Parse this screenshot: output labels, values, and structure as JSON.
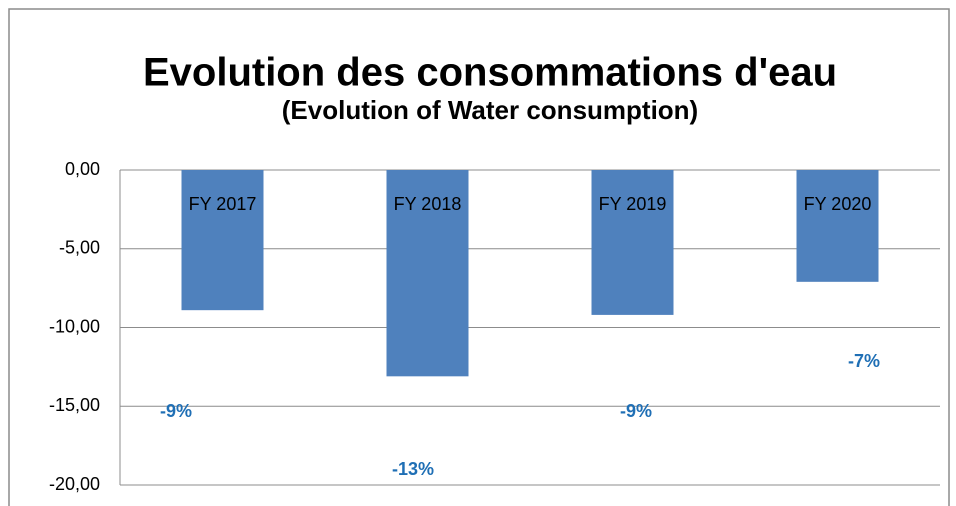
{
  "chart_data": {
    "type": "bar",
    "title": "Evolution des consommations d'eau",
    "subtitle": "(Evolution of Water consumption)",
    "categories": [
      "FY 2017",
      "FY 2018",
      "FY 2019",
      "FY 2020"
    ],
    "values": [
      -8.9,
      -13.1,
      -9.2,
      -7.1
    ],
    "value_labels": [
      "-9%",
      "-13%",
      "-9%",
      "-7%"
    ],
    "color": "#4f81bd",
    "label_color": "#1f6fb5",
    "ylim": [
      -20,
      0
    ],
    "yticks": [
      {
        "value": 0,
        "label": "0,00"
      },
      {
        "value": -5,
        "label": "-5,00"
      },
      {
        "value": -10,
        "label": "-10,00"
      },
      {
        "value": -15,
        "label": "-15,00"
      },
      {
        "value": -20,
        "label": "-20,00"
      }
    ],
    "grid": true
  }
}
